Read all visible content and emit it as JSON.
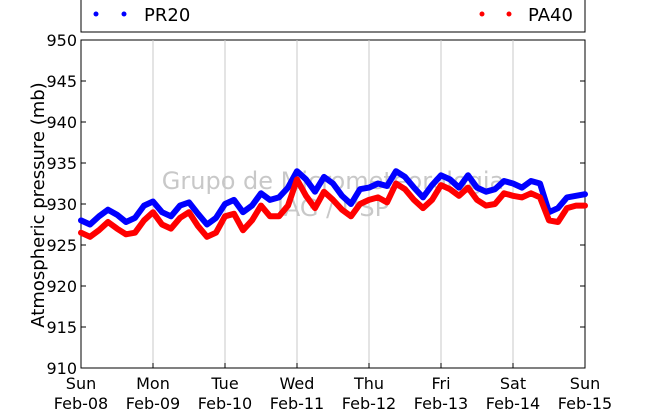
{
  "chart_data": {
    "type": "line",
    "ylabel": "Atmospheric pressure (mb)",
    "ylim": [
      910,
      950
    ],
    "yticks": [
      910,
      915,
      920,
      925,
      930,
      935,
      940,
      945,
      950
    ],
    "xlim": [
      0,
      7
    ],
    "xticks": [
      {
        "x": 0,
        "day": "Sun",
        "date": "Feb-08"
      },
      {
        "x": 1,
        "day": "Mon",
        "date": "Feb-09"
      },
      {
        "x": 2,
        "day": "Tue",
        "date": "Feb-10"
      },
      {
        "x": 3,
        "day": "Wed",
        "date": "Feb-11"
      },
      {
        "x": 4,
        "day": "Thu",
        "date": "Feb-12"
      },
      {
        "x": 5,
        "day": "Fri",
        "date": "Feb-13"
      },
      {
        "x": 6,
        "day": "Sat",
        "date": "Feb-14"
      },
      {
        "x": 7,
        "day": "Sun",
        "date": "Feb-15"
      }
    ],
    "grid": "vertical",
    "legend_position": "top",
    "watermark": [
      "Grupo de Micrometeorologia",
      "IAG / USP"
    ],
    "series": [
      {
        "name": "PR20",
        "color": "#0000ff",
        "x": [
          0.0,
          0.125,
          0.25,
          0.375,
          0.5,
          0.625,
          0.75,
          0.875,
          1.0,
          1.125,
          1.25,
          1.375,
          1.5,
          1.625,
          1.75,
          1.875,
          2.0,
          2.125,
          2.25,
          2.375,
          2.5,
          2.625,
          2.75,
          2.875,
          3.0,
          3.125,
          3.25,
          3.375,
          3.5,
          3.625,
          3.75,
          3.875,
          4.0,
          4.125,
          4.25,
          4.375,
          4.5,
          4.625,
          4.75,
          4.875,
          5.0,
          5.125,
          5.25,
          5.375,
          5.5,
          5.625,
          5.75,
          5.875,
          6.0,
          6.125,
          6.25,
          6.375,
          6.5,
          6.625,
          6.75,
          6.875,
          7.0
        ],
        "values": [
          928.0,
          927.5,
          928.5,
          929.3,
          928.7,
          927.8,
          928.3,
          929.8,
          930.3,
          929.0,
          928.5,
          929.8,
          930.2,
          928.8,
          927.5,
          928.3,
          930.0,
          930.5,
          929.0,
          929.8,
          931.3,
          930.5,
          930.8,
          932.0,
          934.0,
          933.0,
          931.5,
          933.3,
          932.5,
          931.0,
          930.0,
          931.8,
          932.0,
          932.5,
          932.2,
          934.0,
          933.3,
          932.0,
          930.8,
          932.3,
          933.5,
          933.0,
          932.0,
          933.5,
          932.0,
          931.5,
          931.8,
          932.8,
          932.5,
          932.0,
          932.8,
          932.5,
          929.0,
          929.5,
          930.8,
          931.0,
          931.2
        ]
      },
      {
        "name": "PA40",
        "color": "#ff0000",
        "x": [
          0.0,
          0.125,
          0.25,
          0.375,
          0.5,
          0.625,
          0.75,
          0.875,
          1.0,
          1.125,
          1.25,
          1.375,
          1.5,
          1.625,
          1.75,
          1.875,
          2.0,
          2.125,
          2.25,
          2.375,
          2.5,
          2.625,
          2.75,
          2.875,
          3.0,
          3.125,
          3.25,
          3.375,
          3.5,
          3.625,
          3.75,
          3.875,
          4.0,
          4.125,
          4.25,
          4.375,
          4.5,
          4.625,
          4.75,
          4.875,
          5.0,
          5.125,
          5.25,
          5.375,
          5.5,
          5.625,
          5.75,
          5.875,
          6.0,
          6.125,
          6.25,
          6.375,
          6.5,
          6.625,
          6.75,
          6.875,
          7.0
        ],
        "values": [
          926.5,
          926.0,
          926.8,
          927.8,
          927.0,
          926.3,
          926.5,
          928.0,
          929.0,
          927.5,
          927.0,
          928.3,
          929.0,
          927.3,
          926.0,
          926.5,
          928.5,
          928.8,
          926.8,
          928.0,
          929.8,
          928.5,
          928.5,
          929.8,
          933.0,
          931.0,
          929.5,
          931.5,
          930.5,
          929.3,
          928.5,
          930.0,
          930.5,
          930.8,
          930.2,
          932.5,
          931.8,
          930.5,
          929.5,
          930.5,
          932.3,
          931.8,
          931.0,
          932.0,
          930.5,
          929.8,
          930.0,
          931.3,
          931.0,
          930.8,
          931.3,
          930.8,
          928.0,
          927.8,
          929.5,
          929.8,
          929.8
        ]
      }
    ]
  }
}
